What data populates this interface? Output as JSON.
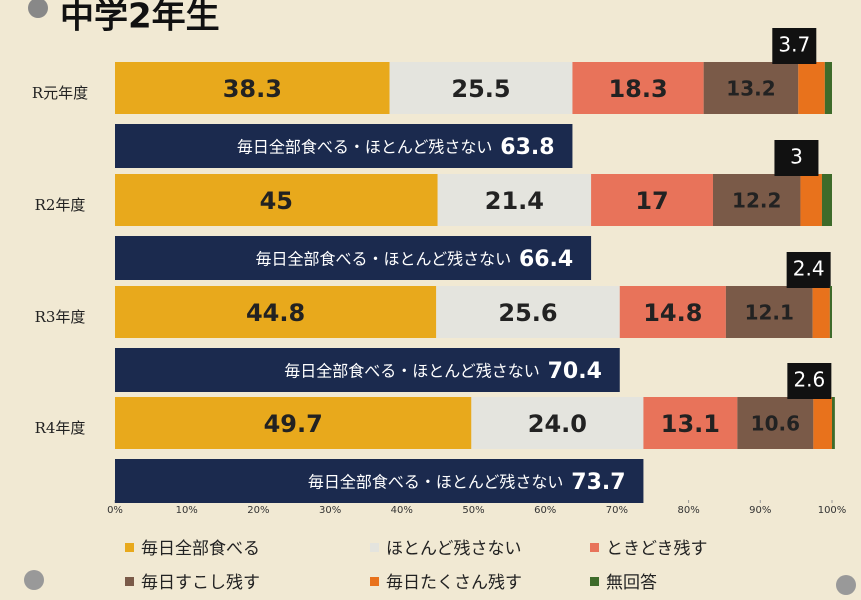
{
  "chart_data": {
    "type": "stacked-bar-horizontal",
    "title": "中学2年生",
    "categories": [
      "R元年度",
      "R2年度",
      "R3年度",
      "R4年度"
    ],
    "series": [
      {
        "name": "毎日全部食べる",
        "color": "#e8a91c",
        "values": [
          38.3,
          45,
          44.8,
          49.7
        ],
        "value_labels": [
          "38.3",
          "45",
          "44.8",
          "49.7"
        ]
      },
      {
        "name": "ほとんど残さない",
        "color": "#e4e4de",
        "values": [
          25.5,
          21.4,
          25.6,
          24.0
        ],
        "value_labels": [
          "25.5",
          "21.4",
          "25.6",
          "24.0"
        ]
      },
      {
        "name": "ときどき残す",
        "color": "#e8735a",
        "values": [
          18.3,
          17,
          14.8,
          13.1
        ],
        "value_labels": [
          "18.3",
          "17",
          "14.8",
          "13.1"
        ]
      },
      {
        "name": "毎日すこし残す",
        "color": "#7a5a48",
        "values": [
          13.2,
          12.2,
          12.1,
          10.6
        ],
        "value_labels": [
          "13.2",
          "12.2",
          "12.1",
          "10.6"
        ]
      },
      {
        "name": "毎日たくさん残す",
        "color": "#e8721c",
        "values": [
          3.7,
          3,
          2.4,
          2.6
        ],
        "value_labels": [
          "3.7",
          "3",
          "2.4",
          "2.6"
        ]
      },
      {
        "name": "無回答",
        "color": "#3e6b2a",
        "values": [
          1.0,
          1.4,
          0.3,
          0.4
        ]
      }
    ],
    "totals": {
      "label": "毎日全部食べる・ほとんど残さない",
      "color": "#1b2a4e",
      "values": [
        63.8,
        66.4,
        70.4,
        73.7
      ]
    },
    "xlim": [
      0,
      100
    ],
    "xticks": [
      {
        "value": 0,
        "label": "0%"
      },
      {
        "value": 10,
        "label": "10%"
      },
      {
        "value": 20,
        "label": "20%"
      },
      {
        "value": 30,
        "label": "30%"
      },
      {
        "value": 40,
        "label": "40%"
      },
      {
        "value": 50,
        "label": "50%"
      },
      {
        "value": 60,
        "label": "60%"
      },
      {
        "value": 70,
        "label": "70%"
      },
      {
        "value": 80,
        "label": "80%"
      },
      {
        "value": 90,
        "label": "90%"
      },
      {
        "value": 100,
        "label": "100%"
      }
    ]
  }
}
